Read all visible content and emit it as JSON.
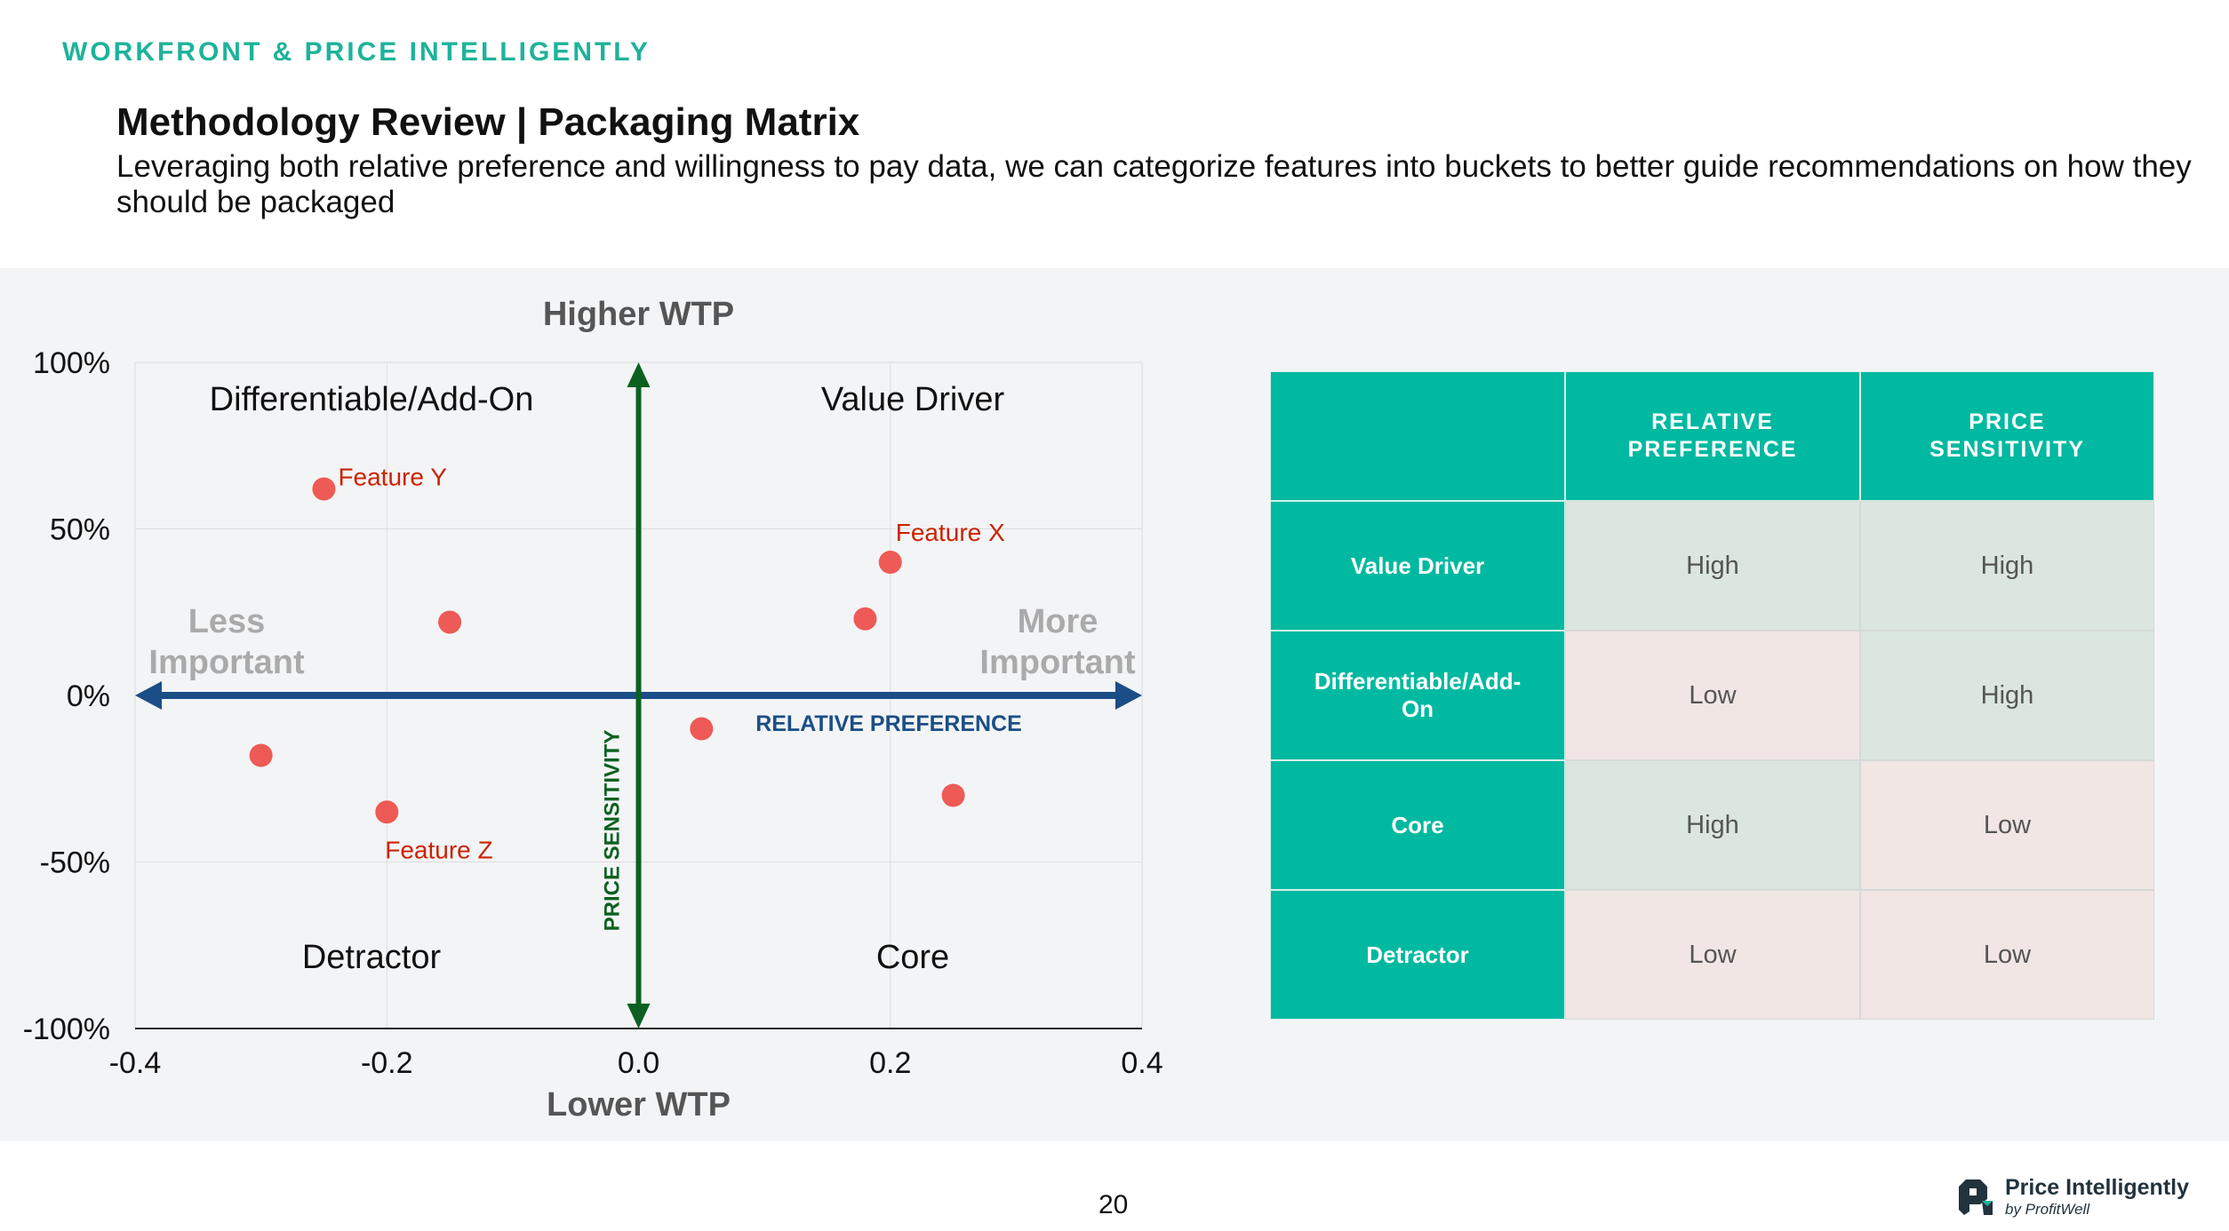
{
  "header": {
    "brand": "WORKFRONT & PRICE INTELLIGENTLY",
    "title": "Methodology Review | Packaging Matrix",
    "subtitle": "Leveraging both relative preference and willingness to pay data, we can categorize features into buckets to better guide recommendations on how they should be packaged"
  },
  "chart_data": {
    "type": "scatter",
    "title": "",
    "xlim": [
      -0.4,
      0.4
    ],
    "ylim": [
      -100,
      100
    ],
    "xticks": [
      "-0.4",
      "-0.2",
      "0.0",
      "0.2",
      "0.4"
    ],
    "yticks": [
      "100%",
      "50%",
      "0%",
      "-50%",
      "-100%"
    ],
    "top_label": "Higher WTP",
    "bottom_label": "Lower WTP",
    "left_label": [
      "Less",
      "Important"
    ],
    "right_label": [
      "More",
      "Important"
    ],
    "x_axis_label": "RELATIVE PREFERENCE",
    "y_axis_label": "PRICE SENSITIVITY",
    "quadrants": {
      "tl": "Differentiable/Add-On",
      "tr": "Value Driver",
      "bl": "Detractor",
      "br": "Core"
    },
    "points": [
      {
        "x": -0.25,
        "y": 62,
        "label": "Feature Y"
      },
      {
        "x": -0.15,
        "y": 22,
        "label": ""
      },
      {
        "x": 0.2,
        "y": 40,
        "label": "Feature X"
      },
      {
        "x": 0.18,
        "y": 23,
        "label": ""
      },
      {
        "x": 0.05,
        "y": -10,
        "label": ""
      },
      {
        "x": 0.25,
        "y": -30,
        "label": ""
      },
      {
        "x": -0.3,
        "y": -18,
        "label": ""
      },
      {
        "x": -0.2,
        "y": -35,
        "label": "Feature Z"
      }
    ],
    "colors": {
      "point": "#ee5a55",
      "label": "#cc2200",
      "x_arrow": "#1b4e86",
      "y_arrow": "#0c6120"
    }
  },
  "table": {
    "headers": [
      "",
      "RELATIVE PREFERENCE",
      "PRICE SENSITIVITY"
    ],
    "rows": [
      {
        "name": "Value Driver",
        "pref": "High",
        "sens": "High"
      },
      {
        "name": "Differentiable/Add-On",
        "pref": "Low",
        "sens": "High"
      },
      {
        "name": "Core",
        "pref": "High",
        "sens": "Low"
      },
      {
        "name": "Detractor",
        "pref": "Low",
        "sens": "Low"
      }
    ]
  },
  "footer": {
    "page": "20",
    "logo_name": "Price Intelligently",
    "logo_sub": "by ProfitWell"
  }
}
